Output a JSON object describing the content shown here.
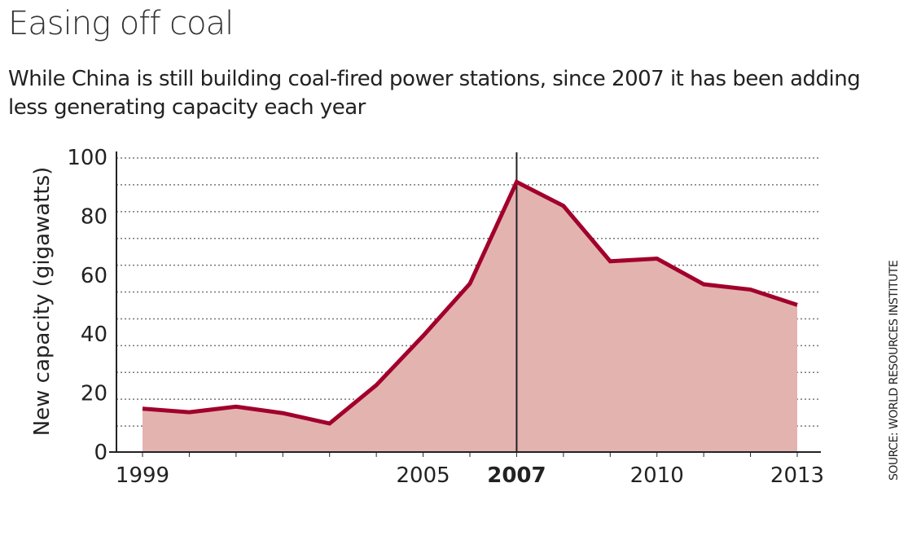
{
  "chart_data": {
    "type": "area",
    "title": "Easing off coal",
    "subtitle": "While China is still building coal-fired power stations, since 2007 it has been adding less generating capacity each year",
    "ylabel": "New capacity (gigawatts)",
    "xlabel": "",
    "x": [
      1999,
      2000,
      2001,
      2002,
      2003,
      2004,
      2005,
      2006,
      2007,
      2008,
      2009,
      2010,
      2011,
      2012,
      2013
    ],
    "values": [
      14.7,
      13.5,
      15.4,
      13.2,
      9.7,
      22.7,
      39.4,
      57.1,
      91.6,
      83.5,
      64.7,
      65.6,
      56.9,
      55.1,
      49.9
    ],
    "xlim": [
      1999,
      2013
    ],
    "ylim": [
      0,
      100
    ],
    "x_tick_labels": [
      {
        "x": 1999,
        "label": "1999"
      },
      {
        "x": 2005,
        "label": "2005"
      },
      {
        "x": 2007,
        "label": "2007",
        "bold": true
      },
      {
        "x": 2010,
        "label": "2010"
      },
      {
        "x": 2013,
        "label": "2013"
      }
    ],
    "y_tick_labels": [
      "0",
      "20",
      "40",
      "60",
      "80",
      "100"
    ],
    "highlight_x": 2007,
    "grid": "horizontal dotted",
    "line_color": "#a1002b",
    "fill_color": "#e3b3b0",
    "source": "SOURCE: WORLD RESOURCES INSTITUTE"
  }
}
